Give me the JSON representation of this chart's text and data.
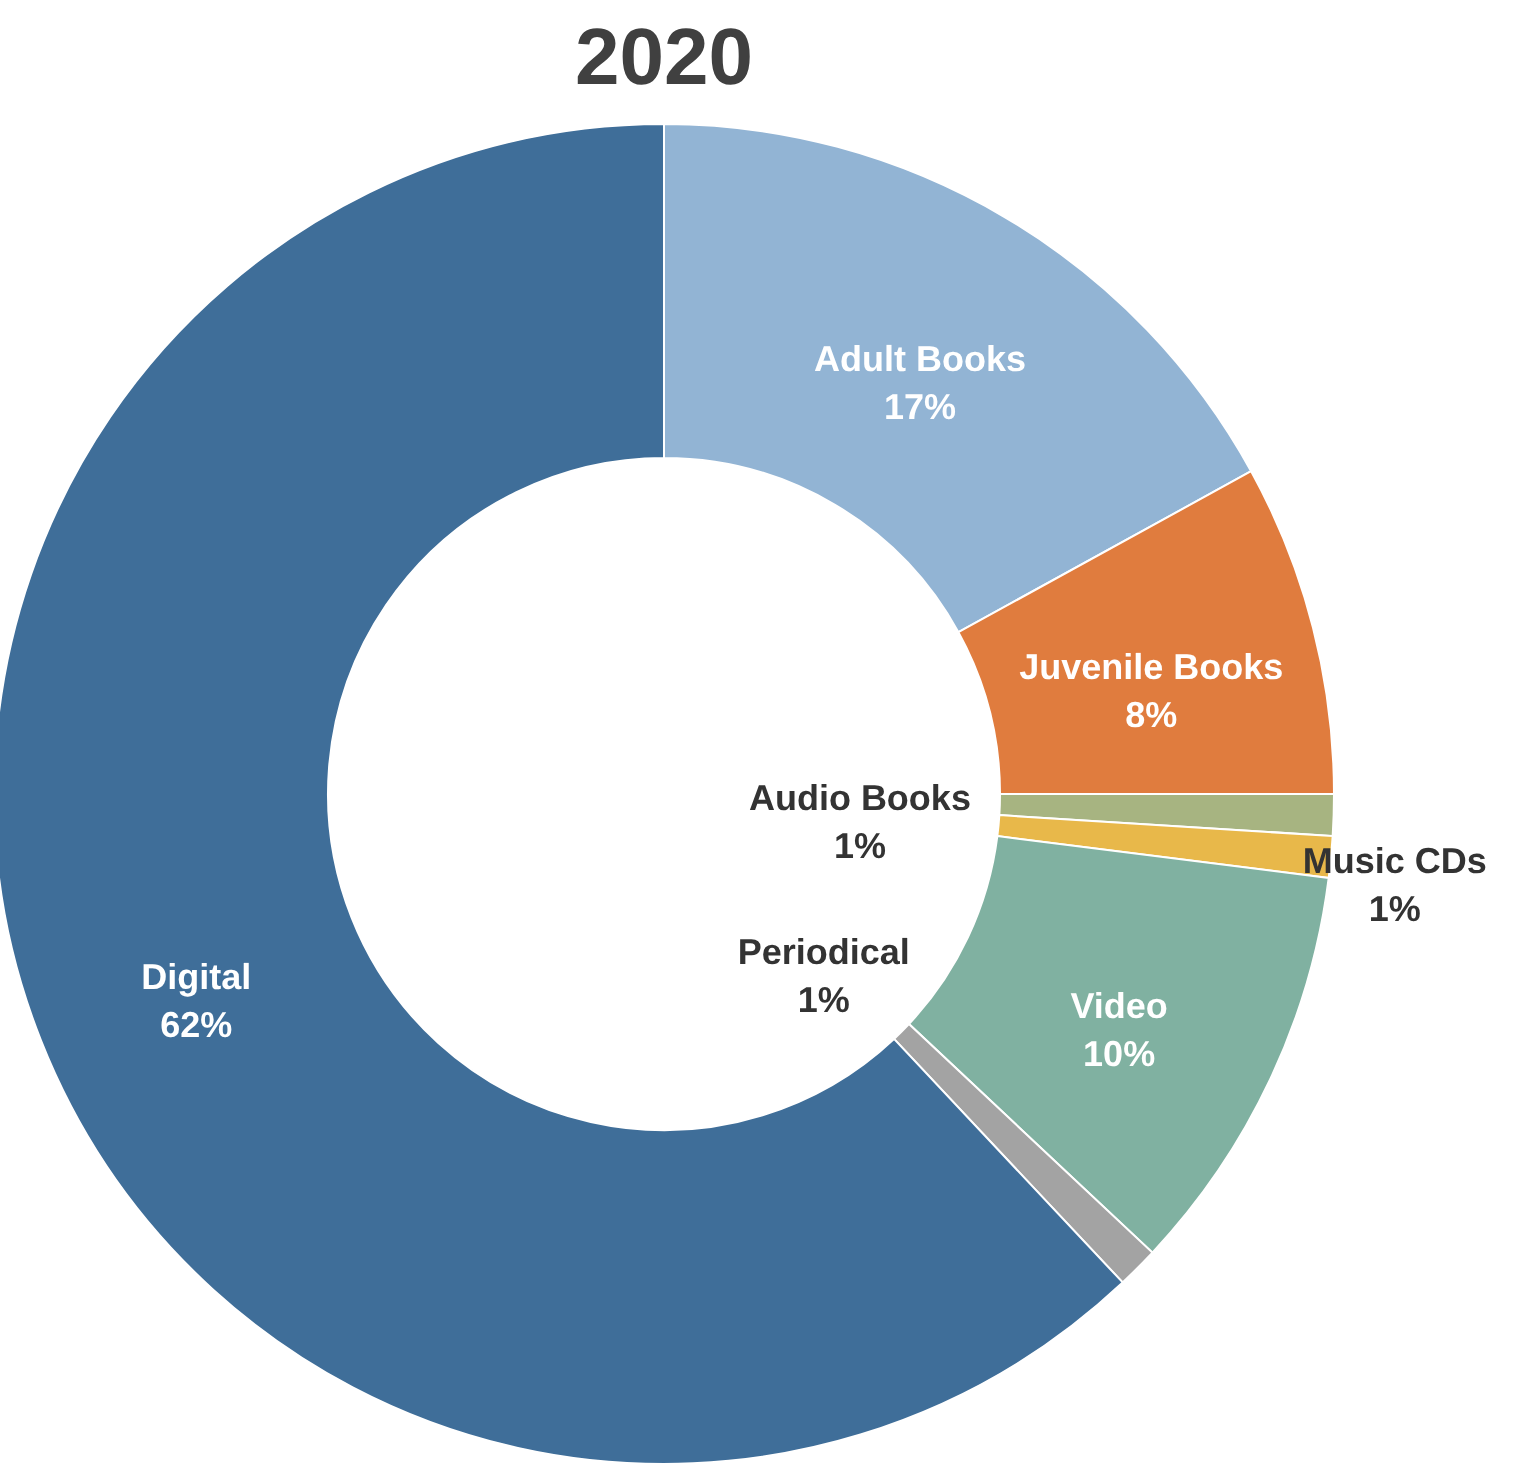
{
  "chart_data": {
    "type": "donut",
    "title": "2020",
    "categories": [
      "Adult Books",
      "Juvenile Books",
      "Audio Books",
      "Music CDs",
      "Video",
      "Periodical",
      "Digital"
    ],
    "values": [
      17,
      8,
      1,
      1,
      10,
      1,
      62
    ],
    "colors": [
      "#92b4d4",
      "#e07c3e",
      "#a7b481",
      "#e8b84a",
      "#80b1a1",
      "#a3a3a3",
      "#3f6e99"
    ],
    "value_labels": [
      "17%",
      "8%",
      "1%",
      "1%",
      "10%",
      "1%",
      "62%"
    ]
  }
}
